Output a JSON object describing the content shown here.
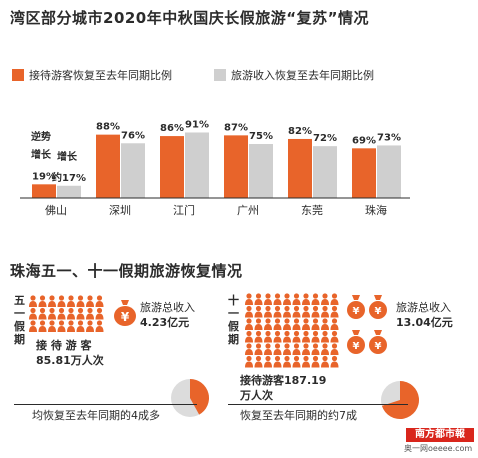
{
  "top_title": "湾区部分城市2020年中秋国庆长假旅游“复苏”情况",
  "legend": {
    "orange_label": "接待游客恢复至去年同期比例",
    "gray_label": "旅游收入恢复至去年同期比例"
  },
  "colors": {
    "orange": "#e8642a",
    "gray": "#cfcfcf",
    "text": "#2b2b2b"
  },
  "chart_data": {
    "type": "bar",
    "title": "湾区部分城市2020年中秋国庆长假旅游“复苏”情况",
    "categories": [
      "佛山",
      "深圳",
      "江门",
      "广州",
      "东莞",
      "珠海"
    ],
    "series": [
      {
        "name": "接待游客恢复至去年同期比例",
        "values": [
          19,
          88,
          86,
          87,
          82,
          69
        ]
      },
      {
        "name": "旅游收入恢复至去年同期比例",
        "values": [
          17,
          76,
          91,
          75,
          72,
          73
        ]
      }
    ],
    "value_labels": {
      "orange": [
        "19%",
        "88%",
        "86%",
        "87%",
        "82%",
        "69%"
      ],
      "gray": [
        "约17%",
        "76%",
        "91%",
        "75%",
        "72%",
        "73%"
      ]
    },
    "foshan_notes": {
      "orange_note_1": "逆势",
      "orange_note_2": "增长",
      "gray_note": "增长"
    },
    "ylim": [
      0,
      100
    ]
  },
  "section2_title": "珠海五一、十一假期旅游恢复情况",
  "may_day": {
    "label": [
      "五",
      "一",
      "假",
      "期"
    ],
    "revenue_label": "旅游总收入",
    "revenue_value": "4.23亿元",
    "visitors_label": "接 待 游 客",
    "visitors_value": "85.81万人次",
    "recovery_text": "均恢复至去年同期的4成多",
    "recovery_fraction": 0.42
  },
  "national_day": {
    "label": [
      "十",
      "一",
      "假",
      "期"
    ],
    "revenue_label": "旅游总收入",
    "revenue_value": "13.04亿元",
    "visitors_label": "接待游客187.19",
    "visitors_unit": "万人次",
    "recovery_text": "恢复至去年同期的约7成",
    "recovery_fraction": 0.7
  },
  "badge": {
    "name": "南方都市報",
    "site": "奥一网oeeee.com"
  }
}
